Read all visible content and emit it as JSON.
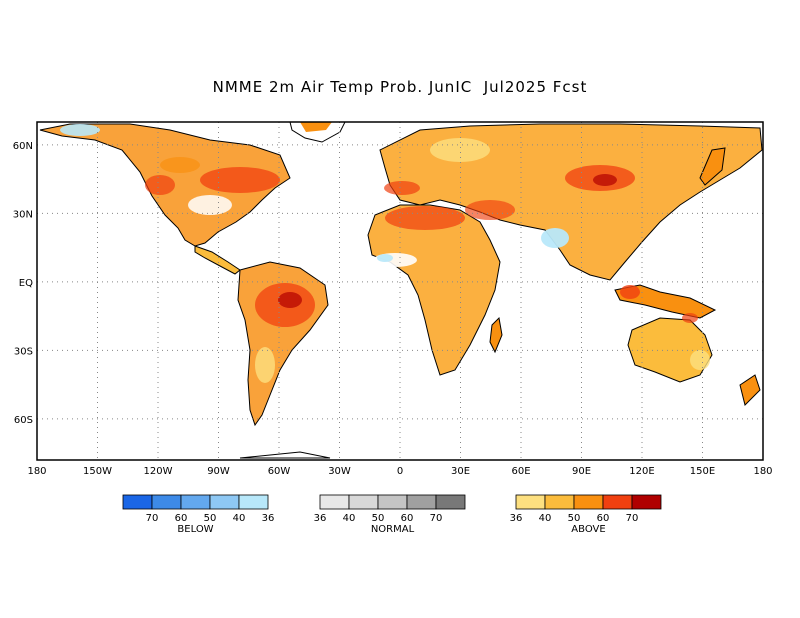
{
  "title": "NMME 2m Air Temp Prob. JunIC  Jul2025 Fcst",
  "lon_ticks": [
    "180",
    "150W",
    "120W",
    "90W",
    "60W",
    "30W",
    "0",
    "30E",
    "60E",
    "90E",
    "120E",
    "150E",
    "180"
  ],
  "lat_ticks": [
    "60N",
    "30N",
    "EQ",
    "30S",
    "60S"
  ],
  "legend": [
    {
      "name": "BELOW",
      "colors": [
        "#1a66e6",
        "#3d8ae8",
        "#63a8ee",
        "#8ec8f4",
        "#b8e8fa"
      ],
      "labels": [
        "70",
        "60",
        "50",
        "40",
        "36"
      ]
    },
    {
      "name": "NORMAL",
      "colors": [
        "#e8e8e8",
        "#d8d8d8",
        "#c4c4c4",
        "#a0a0a0",
        "#787878"
      ],
      "labels": [
        "36",
        "40",
        "50",
        "60",
        "70"
      ]
    },
    {
      "name": "ABOVE",
      "colors": [
        "#fde080",
        "#fbbc3c",
        "#f99010",
        "#f04010",
        "#b00000"
      ],
      "labels": [
        "36",
        "40",
        "50",
        "60",
        "70"
      ]
    }
  ]
}
